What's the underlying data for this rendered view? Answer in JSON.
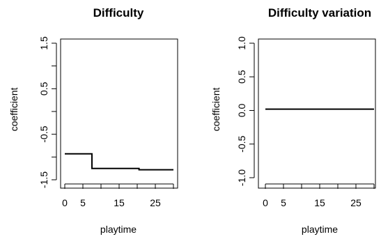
{
  "chart_data": [
    {
      "type": "line",
      "title": "Difficulty",
      "xlabel": "playtime",
      "ylabel": "coefficient",
      "xlim": [
        0,
        30
      ],
      "ylim": [
        -1.5,
        1.5
      ],
      "xticks": [
        0,
        5,
        10,
        15,
        20,
        25,
        30
      ],
      "xtick_labels": [
        "0",
        "5",
        "",
        "15",
        "",
        "25",
        ""
      ],
      "yticks": [
        -1.5,
        -1.0,
        -0.5,
        0.0,
        0.5,
        1.0,
        1.5
      ],
      "ytick_labels": [
        "-1.5",
        "",
        "-0.5",
        "",
        "0.5",
        "",
        "1.5"
      ],
      "grid": false,
      "series": [
        {
          "x": [
            0,
            7.5,
            7.5,
            20.5,
            20.5,
            30
          ],
          "y": [
            -0.93,
            -0.93,
            -1.25,
            -1.25,
            -1.28,
            -1.28
          ]
        }
      ]
    },
    {
      "type": "line",
      "title": "Difficulty variation",
      "xlabel": "playtime",
      "ylabel": "coefficient",
      "xlim": [
        0,
        30
      ],
      "ylim": [
        -1.0,
        1.0
      ],
      "xticks": [
        0,
        5,
        10,
        15,
        20,
        25,
        30
      ],
      "xtick_labels": [
        "0",
        "5",
        "",
        "15",
        "",
        "25",
        ""
      ],
      "yticks": [
        -1.0,
        -0.5,
        0.0,
        0.5,
        1.0
      ],
      "ytick_labels": [
        "-1.0",
        "-0.5",
        "0.0",
        "0.5",
        "1.0"
      ],
      "grid": false,
      "series": [
        {
          "x": [
            0,
            30
          ],
          "y": [
            0.02,
            0.02
          ]
        }
      ]
    }
  ]
}
